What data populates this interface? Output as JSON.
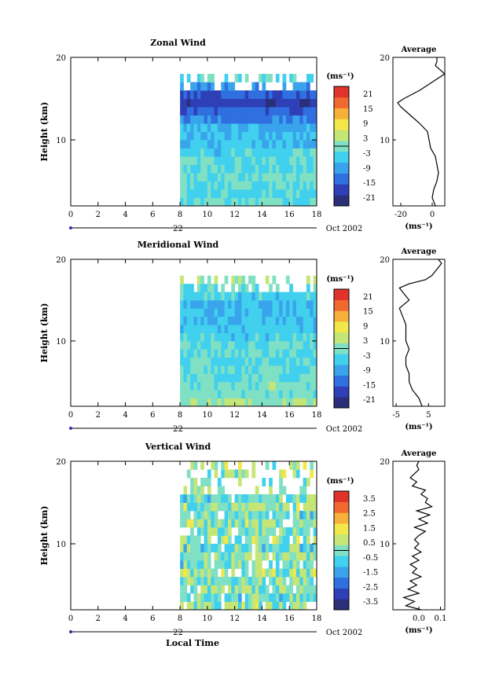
{
  "chart_data": [
    {
      "type": "heatmap",
      "title": "Zonal Wind",
      "ylabel": "Height (km)",
      "xlim": [
        0,
        18
      ],
      "ylim": [
        2,
        20
      ],
      "x_ticks": [
        "0",
        "2",
        "4",
        "6",
        "8",
        "10",
        "12",
        "14",
        "16",
        "18"
      ],
      "y_ticks": [
        "20",
        "10"
      ],
      "date_day": "22",
      "date_label": "Oct 2002",
      "data_start_hour": 8,
      "colorbar": {
        "unit": "(ms⁻¹)",
        "tick_labels": [
          "21",
          "15",
          "9",
          "3",
          "-3",
          "-9",
          "-15",
          "-21"
        ],
        "range": [
          -24,
          24
        ]
      },
      "profile_rows": [
        {
          "h": 2.5,
          "v": -2
        },
        {
          "h": 3.5,
          "v": -3
        },
        {
          "h": 4.5,
          "v": -2
        },
        {
          "h": 5.5,
          "v": -1
        },
        {
          "h": 6.5,
          "v": -3
        },
        {
          "h": 7.5,
          "v": -2
        },
        {
          "h": 8.5,
          "v": -4
        },
        {
          "h": 9.5,
          "v": -6
        },
        {
          "h": 10.5,
          "v": -7
        },
        {
          "h": 11.5,
          "v": -8
        },
        {
          "h": 12.5,
          "v": -12
        },
        {
          "h": 13.5,
          "v": -14
        },
        {
          "h": 14.5,
          "v": -18
        },
        {
          "h": 15.5,
          "v": -15
        },
        {
          "h": 16.5,
          "v": -10
        },
        {
          "h": 17.5,
          "v": -3
        }
      ],
      "average": {
        "title": "Average",
        "xlabel": "(ms⁻¹)",
        "xlim": [
          -25,
          8
        ],
        "x_ticks": [
          "-20",
          "0"
        ],
        "profile": [
          {
            "h": 2,
            "v": 2
          },
          {
            "h": 3,
            "v": 0
          },
          {
            "h": 4,
            "v": 1
          },
          {
            "h": 5,
            "v": 3
          },
          {
            "h": 6,
            "v": 4
          },
          {
            "h": 7,
            "v": 3
          },
          {
            "h": 8,
            "v": 2
          },
          {
            "h": 9,
            "v": -1
          },
          {
            "h": 10,
            "v": -2
          },
          {
            "h": 11,
            "v": -3
          },
          {
            "h": 12,
            "v": -8
          },
          {
            "h": 13,
            "v": -14
          },
          {
            "h": 14,
            "v": -20
          },
          {
            "h": 14.5,
            "v": -22
          },
          {
            "h": 15,
            "v": -18
          },
          {
            "h": 16,
            "v": -8
          },
          {
            "h": 17,
            "v": 0
          },
          {
            "h": 17.5,
            "v": 4
          },
          {
            "h": 18,
            "v": 8
          },
          {
            "h": 18.5,
            "v": 5
          },
          {
            "h": 19,
            "v": 2
          },
          {
            "h": 19.5,
            "v": 3
          },
          {
            "h": 20,
            "v": 3
          }
        ]
      }
    },
    {
      "type": "heatmap",
      "title": "Meridional Wind",
      "ylabel": "Height (km)",
      "xlim": [
        0,
        18
      ],
      "ylim": [
        2,
        20
      ],
      "x_ticks": [
        "0",
        "2",
        "4",
        "6",
        "8",
        "10",
        "12",
        "14",
        "16",
        "18"
      ],
      "y_ticks": [
        "20",
        "10"
      ],
      "date_day": "22",
      "date_label": "Oct 2002",
      "data_start_hour": 8,
      "colorbar": {
        "unit": "(ms⁻¹)",
        "tick_labels": [
          "21",
          "15",
          "9",
          "3",
          "-3",
          "-9",
          "-15",
          "-21"
        ],
        "range": [
          -24,
          24
        ]
      },
      "profile_rows": [
        {
          "h": 2.5,
          "v": 2
        },
        {
          "h": 3.5,
          "v": -1
        },
        {
          "h": 4.5,
          "v": 0
        },
        {
          "h": 5.5,
          "v": -2
        },
        {
          "h": 6.5,
          "v": -2
        },
        {
          "h": 7.5,
          "v": -3
        },
        {
          "h": 8.5,
          "v": -2
        },
        {
          "h": 9.5,
          "v": -3
        },
        {
          "h": 10.5,
          "v": -4
        },
        {
          "h": 11.5,
          "v": -5
        },
        {
          "h": 12.5,
          "v": -6
        },
        {
          "h": 13.5,
          "v": -6
        },
        {
          "h": 14.5,
          "v": -7
        },
        {
          "h": 15.5,
          "v": -4
        },
        {
          "h": 16.5,
          "v": -2
        },
        {
          "h": 17.5,
          "v": 2
        }
      ],
      "average": {
        "title": "Average",
        "xlabel": "(ms⁻¹)",
        "xlim": [
          -6,
          10
        ],
        "x_ticks": [
          "-5",
          "5"
        ],
        "profile": [
          {
            "h": 2,
            "v": 3
          },
          {
            "h": 3,
            "v": 2
          },
          {
            "h": 4,
            "v": 0
          },
          {
            "h": 5,
            "v": -1
          },
          {
            "h": 6,
            "v": -1
          },
          {
            "h": 7,
            "v": -2
          },
          {
            "h": 8,
            "v": -2
          },
          {
            "h": 9,
            "v": -1
          },
          {
            "h": 10,
            "v": -2
          },
          {
            "h": 11,
            "v": -2
          },
          {
            "h": 12,
            "v": -2
          },
          {
            "h": 13,
            "v": -3
          },
          {
            "h": 14,
            "v": -4
          },
          {
            "h": 15,
            "v": -1
          },
          {
            "h": 16,
            "v": -3
          },
          {
            "h": 16.5,
            "v": -4
          },
          {
            "h": 17,
            "v": -1
          },
          {
            "h": 17.5,
            "v": 4
          },
          {
            "h": 18,
            "v": 6
          },
          {
            "h": 18.5,
            "v": 7
          },
          {
            "h": 19,
            "v": 8
          },
          {
            "h": 19.5,
            "v": 9
          },
          {
            "h": 20,
            "v": 8
          }
        ]
      }
    },
    {
      "type": "heatmap",
      "title": "Vertical Wind",
      "ylabel": "Height (km)",
      "xlabel": "Local Time",
      "xlim": [
        0,
        18
      ],
      "ylim": [
        2,
        20
      ],
      "x_ticks": [
        "0",
        "2",
        "4",
        "6",
        "8",
        "10",
        "12",
        "14",
        "16",
        "18"
      ],
      "y_ticks": [
        "20",
        "10"
      ],
      "date_day": "22",
      "date_label": "Oct 2002",
      "data_start_hour": 8,
      "colorbar": {
        "unit": "(ms⁻¹)",
        "tick_labels": [
          "3.5",
          "2.5",
          "1.5",
          "0.5",
          "-0.5",
          "-1.5",
          "-2.5",
          "-3.5"
        ],
        "range": [
          -4,
          4
        ]
      },
      "profile_rows": [
        {
          "h": 2.5,
          "v": 0.2
        },
        {
          "h": 3.5,
          "v": -0.3
        },
        {
          "h": 4.5,
          "v": 0.1
        },
        {
          "h": 5.5,
          "v": -0.2
        },
        {
          "h": 6.5,
          "v": 0.3
        },
        {
          "h": 7.5,
          "v": -0.2
        },
        {
          "h": 8.5,
          "v": 0.2
        },
        {
          "h": 9.5,
          "v": -0.3
        },
        {
          "h": 10.5,
          "v": 0.3
        },
        {
          "h": 11.5,
          "v": -0.1
        },
        {
          "h": 12.5,
          "v": 0.3
        },
        {
          "h": 13.5,
          "v": -0.2
        },
        {
          "h": 14.5,
          "v": 0.2
        },
        {
          "h": 15.5,
          "v": -0.3
        },
        {
          "h": 16.5,
          "v": 0.3
        },
        {
          "h": 17.5,
          "v": 0.1
        },
        {
          "h": 18.5,
          "v": 0.3
        },
        {
          "h": 19.5,
          "v": 0.2
        }
      ],
      "average": {
        "title": "Average",
        "xlabel": "(ms⁻¹)",
        "xlim": [
          -0.12,
          0.12
        ],
        "x_ticks": [
          "0.0",
          "0.1"
        ],
        "profile": [
          {
            "h": 2,
            "v": 0.01
          },
          {
            "h": 2.5,
            "v": -0.06
          },
          {
            "h": 3,
            "v": -0.02
          },
          {
            "h": 3.5,
            "v": -0.07
          },
          {
            "h": 4,
            "v": 0.0
          },
          {
            "h": 4.5,
            "v": -0.05
          },
          {
            "h": 5,
            "v": -0.01
          },
          {
            "h": 5.5,
            "v": -0.04
          },
          {
            "h": 6,
            "v": 0.01
          },
          {
            "h": 6.5,
            "v": -0.03
          },
          {
            "h": 7,
            "v": -0.01
          },
          {
            "h": 7.5,
            "v": -0.04
          },
          {
            "h": 8,
            "v": 0.0
          },
          {
            "h": 8.5,
            "v": -0.03
          },
          {
            "h": 9,
            "v": 0.01
          },
          {
            "h": 9.5,
            "v": -0.02
          },
          {
            "h": 10,
            "v": 0.0
          },
          {
            "h": 10.5,
            "v": -0.02
          },
          {
            "h": 11,
            "v": 0.0
          },
          {
            "h": 11.5,
            "v": 0.03
          },
          {
            "h": 12,
            "v": -0.02
          },
          {
            "h": 12.5,
            "v": 0.04
          },
          {
            "h": 13,
            "v": 0.0
          },
          {
            "h": 13.5,
            "v": 0.05
          },
          {
            "h": 14,
            "v": -0.01
          },
          {
            "h": 14.5,
            "v": 0.06
          },
          {
            "h": 15,
            "v": 0.03
          },
          {
            "h": 15.5,
            "v": 0.04
          },
          {
            "h": 16,
            "v": 0.01
          },
          {
            "h": 16.5,
            "v": 0.03
          },
          {
            "h": 17,
            "v": -0.03
          },
          {
            "h": 17.5,
            "v": -0.01
          },
          {
            "h": 18,
            "v": -0.04
          },
          {
            "h": 18.5,
            "v": -0.02
          },
          {
            "h": 19,
            "v": 0.0
          },
          {
            "h": 19.5,
            "v": -0.01
          },
          {
            "h": 20,
            "v": 0.0
          }
        ]
      }
    }
  ],
  "footer": {
    "xlabel": "Local Time"
  },
  "colors": {
    "palette": [
      "#2b2f7a",
      "#2f3fb5",
      "#2f6fe0",
      "#39a4ec",
      "#41d0ee",
      "#7fe0c4",
      "#c5e676",
      "#f2e84a",
      "#f7b13a",
      "#f06a30",
      "#e0332a"
    ]
  }
}
